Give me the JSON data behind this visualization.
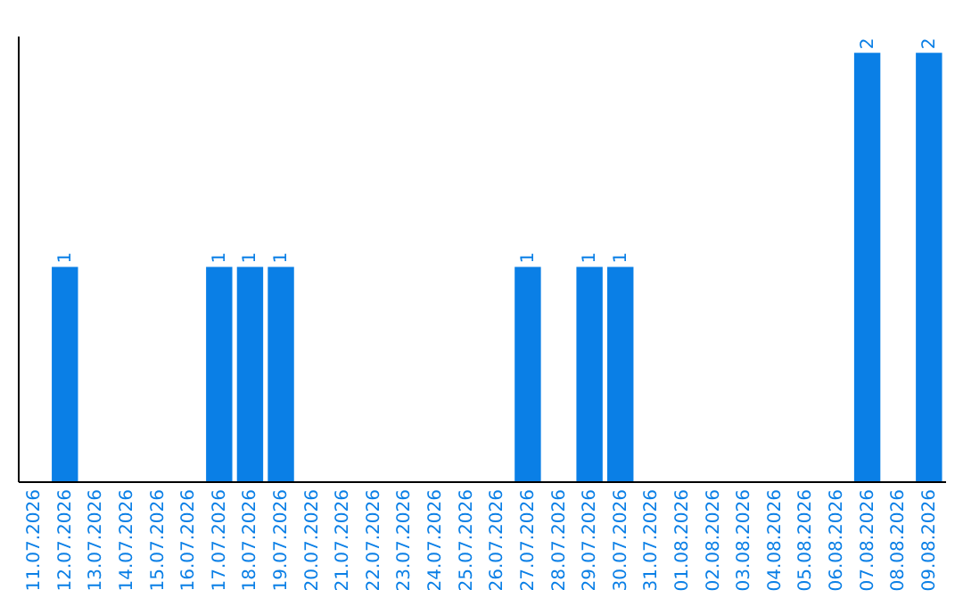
{
  "chart_data": {
    "type": "bar",
    "categories": [
      "11.07.2026",
      "12.07.2026",
      "13.07.2026",
      "14.07.2026",
      "15.07.2026",
      "16.07.2026",
      "17.07.2026",
      "18.07.2026",
      "19.07.2026",
      "20.07.2026",
      "21.07.2026",
      "22.07.2026",
      "23.07.2026",
      "24.07.2026",
      "25.07.2026",
      "26.07.2026",
      "27.07.2026",
      "28.07.2026",
      "29.07.2026",
      "30.07.2026",
      "31.07.2026",
      "01.08.2026",
      "02.08.2026",
      "03.08.2026",
      "04.08.2026",
      "05.08.2026",
      "06.08.2026",
      "07.08.2026",
      "08.08.2026",
      "09.08.2026"
    ],
    "values": [
      0,
      1,
      0,
      0,
      0,
      0,
      1,
      1,
      1,
      0,
      0,
      0,
      0,
      0,
      0,
      0,
      1,
      0,
      1,
      1,
      0,
      0,
      0,
      0,
      0,
      0,
      0,
      2,
      0,
      2
    ],
    "value_labels": [
      null,
      "1",
      null,
      null,
      null,
      null,
      "1",
      "1",
      "1",
      null,
      null,
      null,
      null,
      null,
      null,
      null,
      "1",
      null,
      "1",
      "1",
      null,
      null,
      null,
      null,
      null,
      null,
      null,
      "2",
      null,
      "2"
    ],
    "color": "#0a7fe6",
    "ylim": [
      0,
      2.08
    ],
    "tick_labels": "x"
  }
}
